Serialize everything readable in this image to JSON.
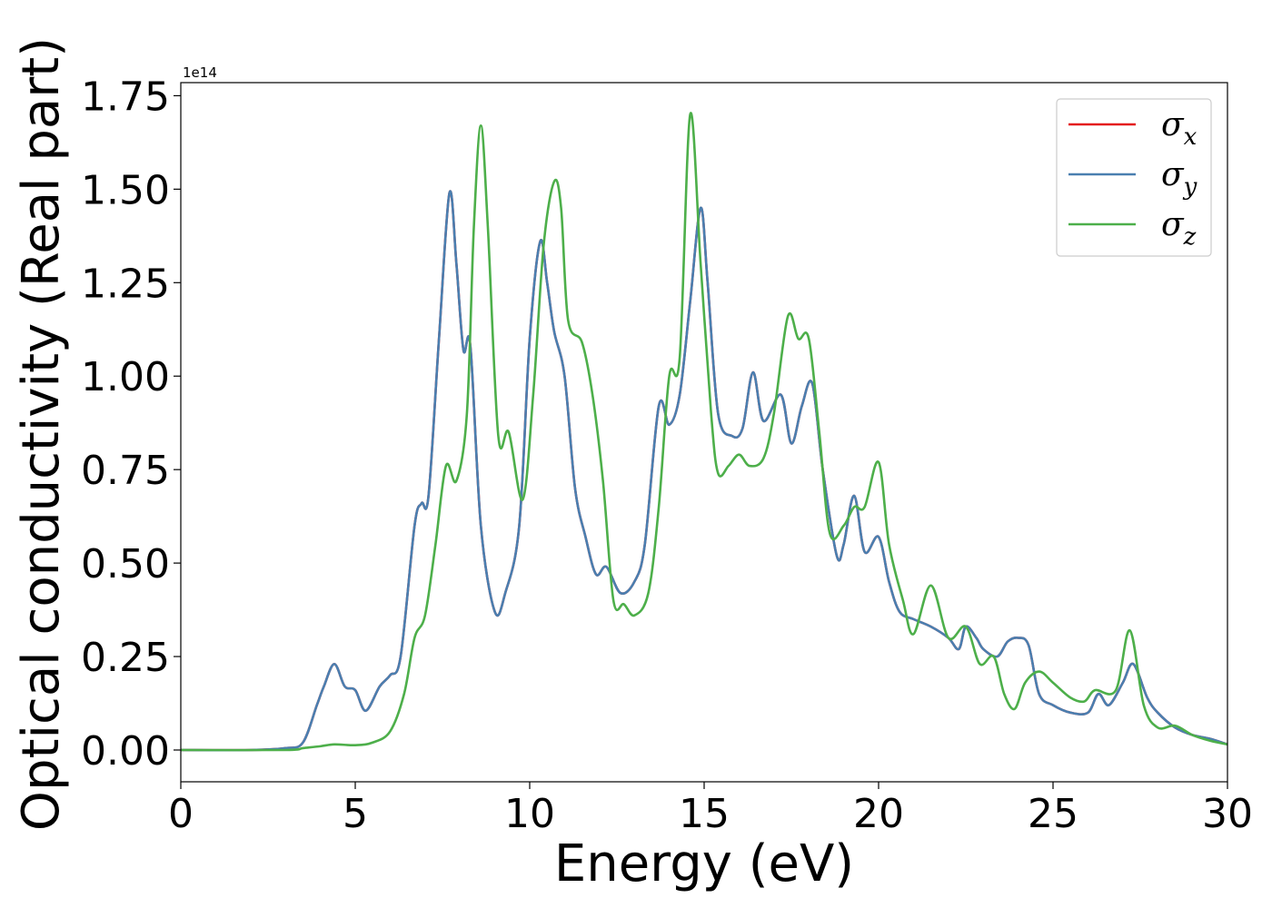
{
  "chart_data": {
    "type": "line",
    "title": "",
    "xlabel": "Energy (eV)",
    "ylabel": "Optical conductivity (Real part)",
    "y_offset_label": "1e14",
    "xlim": [
      0,
      30
    ],
    "ylim": [
      -0.085,
      1.785
    ],
    "x_ticks": [
      0,
      5,
      10,
      15,
      20,
      25,
      30
    ],
    "x_tick_labels": [
      "0",
      "5",
      "10",
      "15",
      "20",
      "25",
      "30"
    ],
    "y_ticks": [
      0,
      0.25,
      0.5,
      0.75,
      1.0,
      1.25,
      1.5,
      1.75
    ],
    "y_tick_labels": [
      "0.00",
      "0.25",
      "0.50",
      "0.75",
      "1.00",
      "1.25",
      "1.50",
      "1.75"
    ],
    "grid": false,
    "legend_position": "top-right",
    "series": [
      {
        "name": "σx",
        "label_base": "σ",
        "label_sub": "x",
        "color": "#e41a1c",
        "points": [
          [
            0,
            0
          ],
          [
            2,
            0
          ],
          [
            3,
            0.005
          ],
          [
            3.5,
            0.02
          ],
          [
            3.9,
            0.12
          ],
          [
            4.1,
            0.17
          ],
          [
            4.4,
            0.23
          ],
          [
            4.7,
            0.17
          ],
          [
            5.0,
            0.16
          ],
          [
            5.3,
            0.105
          ],
          [
            5.7,
            0.17
          ],
          [
            6.0,
            0.2
          ],
          [
            6.3,
            0.25
          ],
          [
            6.7,
            0.6
          ],
          [
            6.9,
            0.66
          ],
          [
            7.1,
            0.68
          ],
          [
            7.4,
            1.1
          ],
          [
            7.7,
            1.49
          ],
          [
            7.9,
            1.3
          ],
          [
            8.1,
            1.07
          ],
          [
            8.3,
            1.08
          ],
          [
            8.6,
            0.6
          ],
          [
            9.0,
            0.37
          ],
          [
            9.3,
            0.42
          ],
          [
            9.7,
            0.6
          ],
          [
            10.0,
            1.1
          ],
          [
            10.3,
            1.36
          ],
          [
            10.5,
            1.25
          ],
          [
            10.7,
            1.12
          ],
          [
            11.0,
            1.0
          ],
          [
            11.3,
            0.7
          ],
          [
            11.6,
            0.57
          ],
          [
            11.9,
            0.47
          ],
          [
            12.2,
            0.49
          ],
          [
            12.6,
            0.42
          ],
          [
            13.0,
            0.45
          ],
          [
            13.3,
            0.55
          ],
          [
            13.7,
            0.92
          ],
          [
            14.0,
            0.87
          ],
          [
            14.3,
            0.95
          ],
          [
            14.6,
            1.2
          ],
          [
            14.9,
            1.45
          ],
          [
            15.1,
            1.25
          ],
          [
            15.4,
            0.9
          ],
          [
            15.8,
            0.84
          ],
          [
            16.1,
            0.86
          ],
          [
            16.4,
            1.01
          ],
          [
            16.7,
            0.88
          ],
          [
            17.2,
            0.95
          ],
          [
            17.5,
            0.82
          ],
          [
            17.8,
            0.92
          ],
          [
            18.1,
            0.98
          ],
          [
            18.4,
            0.75
          ],
          [
            18.8,
            0.52
          ],
          [
            19.0,
            0.55
          ],
          [
            19.3,
            0.68
          ],
          [
            19.6,
            0.53
          ],
          [
            20.0,
            0.57
          ],
          [
            20.3,
            0.45
          ],
          [
            20.6,
            0.37
          ],
          [
            21.0,
            0.35
          ],
          [
            21.5,
            0.33
          ],
          [
            22.0,
            0.3
          ],
          [
            22.3,
            0.27
          ],
          [
            22.5,
            0.33
          ],
          [
            22.8,
            0.3
          ],
          [
            23.0,
            0.27
          ],
          [
            23.4,
            0.25
          ],
          [
            23.7,
            0.29
          ],
          [
            24.0,
            0.3
          ],
          [
            24.3,
            0.28
          ],
          [
            24.6,
            0.15
          ],
          [
            25.0,
            0.12
          ],
          [
            25.5,
            0.1
          ],
          [
            26.0,
            0.1
          ],
          [
            26.3,
            0.15
          ],
          [
            26.6,
            0.12
          ],
          [
            27.0,
            0.18
          ],
          [
            27.3,
            0.23
          ],
          [
            27.7,
            0.14
          ],
          [
            28.0,
            0.1
          ],
          [
            28.5,
            0.06
          ],
          [
            29.0,
            0.04
          ],
          [
            29.5,
            0.03
          ],
          [
            30.0,
            0.015
          ]
        ]
      },
      {
        "name": "σy",
        "label_base": "σ",
        "label_sub": "y",
        "color": "#4a7fb0",
        "points": [
          [
            0,
            0
          ],
          [
            2,
            0
          ],
          [
            3,
            0.005
          ],
          [
            3.5,
            0.02
          ],
          [
            3.9,
            0.12
          ],
          [
            4.1,
            0.17
          ],
          [
            4.4,
            0.23
          ],
          [
            4.7,
            0.17
          ],
          [
            5.0,
            0.16
          ],
          [
            5.3,
            0.105
          ],
          [
            5.7,
            0.17
          ],
          [
            6.0,
            0.2
          ],
          [
            6.3,
            0.25
          ],
          [
            6.7,
            0.6
          ],
          [
            6.9,
            0.66
          ],
          [
            7.1,
            0.68
          ],
          [
            7.4,
            1.1
          ],
          [
            7.7,
            1.49
          ],
          [
            7.9,
            1.3
          ],
          [
            8.1,
            1.07
          ],
          [
            8.3,
            1.08
          ],
          [
            8.6,
            0.6
          ],
          [
            9.0,
            0.37
          ],
          [
            9.3,
            0.42
          ],
          [
            9.7,
            0.6
          ],
          [
            10.0,
            1.1
          ],
          [
            10.3,
            1.36
          ],
          [
            10.5,
            1.25
          ],
          [
            10.7,
            1.12
          ],
          [
            11.0,
            1.0
          ],
          [
            11.3,
            0.7
          ],
          [
            11.6,
            0.57
          ],
          [
            11.9,
            0.47
          ],
          [
            12.2,
            0.49
          ],
          [
            12.6,
            0.42
          ],
          [
            13.0,
            0.45
          ],
          [
            13.3,
            0.55
          ],
          [
            13.7,
            0.92
          ],
          [
            14.0,
            0.87
          ],
          [
            14.3,
            0.95
          ],
          [
            14.6,
            1.2
          ],
          [
            14.9,
            1.45
          ],
          [
            15.1,
            1.25
          ],
          [
            15.4,
            0.9
          ],
          [
            15.8,
            0.84
          ],
          [
            16.1,
            0.86
          ],
          [
            16.4,
            1.01
          ],
          [
            16.7,
            0.88
          ],
          [
            17.2,
            0.95
          ],
          [
            17.5,
            0.82
          ],
          [
            17.8,
            0.92
          ],
          [
            18.1,
            0.98
          ],
          [
            18.4,
            0.75
          ],
          [
            18.8,
            0.52
          ],
          [
            19.0,
            0.55
          ],
          [
            19.3,
            0.68
          ],
          [
            19.6,
            0.53
          ],
          [
            20.0,
            0.57
          ],
          [
            20.3,
            0.45
          ],
          [
            20.6,
            0.37
          ],
          [
            21.0,
            0.35
          ],
          [
            21.5,
            0.33
          ],
          [
            22.0,
            0.3
          ],
          [
            22.3,
            0.27
          ],
          [
            22.5,
            0.33
          ],
          [
            22.8,
            0.3
          ],
          [
            23.0,
            0.27
          ],
          [
            23.4,
            0.25
          ],
          [
            23.7,
            0.29
          ],
          [
            24.0,
            0.3
          ],
          [
            24.3,
            0.28
          ],
          [
            24.6,
            0.15
          ],
          [
            25.0,
            0.12
          ],
          [
            25.5,
            0.1
          ],
          [
            26.0,
            0.1
          ],
          [
            26.3,
            0.15
          ],
          [
            26.6,
            0.12
          ],
          [
            27.0,
            0.18
          ],
          [
            27.3,
            0.23
          ],
          [
            27.7,
            0.14
          ],
          [
            28.0,
            0.1
          ],
          [
            28.5,
            0.06
          ],
          [
            29.0,
            0.04
          ],
          [
            29.5,
            0.03
          ],
          [
            30.0,
            0.015
          ]
        ]
      },
      {
        "name": "σz",
        "label_base": "σ",
        "label_sub": "z",
        "color": "#4daf4a",
        "points": [
          [
            0,
            0
          ],
          [
            3,
            0
          ],
          [
            3.5,
            0.005
          ],
          [
            4.0,
            0.01
          ],
          [
            4.4,
            0.015
          ],
          [
            5.0,
            0.013
          ],
          [
            5.5,
            0.02
          ],
          [
            6.0,
            0.05
          ],
          [
            6.4,
            0.15
          ],
          [
            6.7,
            0.3
          ],
          [
            7.0,
            0.36
          ],
          [
            7.3,
            0.55
          ],
          [
            7.6,
            0.76
          ],
          [
            7.9,
            0.72
          ],
          [
            8.2,
            0.9
          ],
          [
            8.4,
            1.4
          ],
          [
            8.6,
            1.67
          ],
          [
            8.8,
            1.4
          ],
          [
            9.1,
            0.84
          ],
          [
            9.4,
            0.85
          ],
          [
            9.8,
            0.67
          ],
          [
            10.1,
            0.95
          ],
          [
            10.4,
            1.35
          ],
          [
            10.7,
            1.52
          ],
          [
            10.9,
            1.45
          ],
          [
            11.1,
            1.15
          ],
          [
            11.5,
            1.09
          ],
          [
            11.8,
            0.95
          ],
          [
            12.1,
            0.72
          ],
          [
            12.4,
            0.4
          ],
          [
            12.7,
            0.39
          ],
          [
            13.0,
            0.36
          ],
          [
            13.4,
            0.42
          ],
          [
            13.7,
            0.65
          ],
          [
            14.0,
            1.0
          ],
          [
            14.3,
            1.05
          ],
          [
            14.6,
            1.7
          ],
          [
            14.9,
            1.3
          ],
          [
            15.2,
            0.9
          ],
          [
            15.4,
            0.74
          ],
          [
            15.7,
            0.76
          ],
          [
            16.0,
            0.79
          ],
          [
            16.3,
            0.76
          ],
          [
            16.7,
            0.78
          ],
          [
            17.0,
            0.9
          ],
          [
            17.4,
            1.16
          ],
          [
            17.7,
            1.1
          ],
          [
            18.0,
            1.1
          ],
          [
            18.3,
            0.85
          ],
          [
            18.6,
            0.58
          ],
          [
            19.0,
            0.6
          ],
          [
            19.3,
            0.65
          ],
          [
            19.6,
            0.65
          ],
          [
            20.0,
            0.77
          ],
          [
            20.3,
            0.55
          ],
          [
            20.7,
            0.4
          ],
          [
            21.0,
            0.31
          ],
          [
            21.5,
            0.44
          ],
          [
            22.0,
            0.3
          ],
          [
            22.5,
            0.33
          ],
          [
            22.9,
            0.23
          ],
          [
            23.3,
            0.25
          ],
          [
            23.6,
            0.15
          ],
          [
            23.9,
            0.11
          ],
          [
            24.2,
            0.18
          ],
          [
            24.6,
            0.21
          ],
          [
            25.0,
            0.18
          ],
          [
            25.5,
            0.14
          ],
          [
            25.9,
            0.13
          ],
          [
            26.2,
            0.16
          ],
          [
            26.8,
            0.16
          ],
          [
            27.2,
            0.32
          ],
          [
            27.6,
            0.12
          ],
          [
            28.0,
            0.06
          ],
          [
            28.5,
            0.065
          ],
          [
            29.0,
            0.04
          ],
          [
            29.5,
            0.025
          ],
          [
            30.0,
            0.015
          ]
        ]
      }
    ]
  }
}
